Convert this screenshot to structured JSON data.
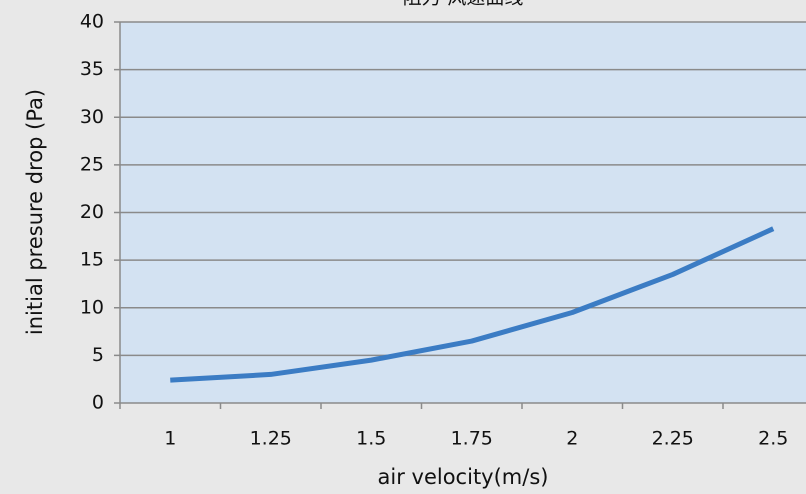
{
  "chart_data": {
    "type": "line",
    "title": "阻力-风速曲线",
    "x_label": "air velocity(m/s)",
    "y_label": "initial presure drop (Pa)",
    "categories": [
      "1",
      "1.25",
      "1.5",
      "1.75",
      "2",
      "2.25",
      "2.5"
    ],
    "series": [
      {
        "name": "initial presure drop",
        "color": "#3b7cc4",
        "values": [
          2.4,
          3.0,
          4.5,
          6.5,
          9.5,
          13.5,
          18.3
        ]
      }
    ],
    "ylim": [
      0,
      40
    ],
    "yticks": [
      0,
      5,
      10,
      15,
      20,
      25,
      30,
      35,
      40
    ],
    "grid": true
  }
}
